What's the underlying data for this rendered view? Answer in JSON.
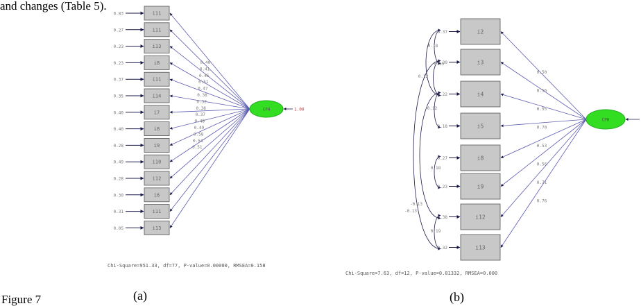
{
  "header_text": "and changes (Table 5).",
  "figure_label": "Figure 7",
  "panel_a": {
    "label": "(a)",
    "latent_name": "CPH",
    "latent_variance": "1.00",
    "fit_text": "Chi-Square=951.33, df=77, P-value=0.00000, RMSEA=0.158",
    "indicators": [
      {
        "name": "i11",
        "error": "0.83",
        "loading": "0.40"
      },
      {
        "name": "i11",
        "error": "0.27",
        "loading": "0.41"
      },
      {
        "name": "i13",
        "error": "0.23",
        "loading": "0.45"
      },
      {
        "name": "i8",
        "error": "0.23",
        "loading": "0.51"
      },
      {
        "name": "i11",
        "error": "0.37",
        "loading": "0.47"
      },
      {
        "name": "i14",
        "error": "0.35",
        "loading": "0.38"
      },
      {
        "name": "i7",
        "error": "0.40",
        "loading": "0.32"
      },
      {
        "name": "i8",
        "error": "0.40",
        "loading": "0.38"
      },
      {
        "name": "i9",
        "error": "0.28",
        "loading": "0.37"
      },
      {
        "name": "i10",
        "error": "0.49",
        "loading": "0.48"
      },
      {
        "name": "i12",
        "error": "0.28",
        "loading": "0.49"
      },
      {
        "name": "i6",
        "error": "0.30",
        "loading": "0.58"
      },
      {
        "name": "i11",
        "error": "0.31",
        "loading": "0.54"
      },
      {
        "name": "i13",
        "error": "0.05",
        "loading": "0.51"
      }
    ]
  },
  "panel_b": {
    "label": "(b)",
    "latent_name": "CPH",
    "fit_text": "Chi-Square=7.63, df=12, P-value=0.81332, RMSEA=0.000",
    "indicators": [
      {
        "name": "i2",
        "error": "0.37",
        "loading": "0.50"
      },
      {
        "name": "i3",
        "error": "0.30",
        "loading": "0.56"
      },
      {
        "name": "i4",
        "error": "0.22",
        "loading": "0.55"
      },
      {
        "name": "i5",
        "error": "0.18",
        "loading": "0.70"
      },
      {
        "name": "i8",
        "error": "0.27",
        "loading": "0.53"
      },
      {
        "name": "i9",
        "error": "0.23",
        "loading": "0.56"
      },
      {
        "name": "i12",
        "error": "0.38",
        "loading": "0.71"
      },
      {
        "name": "i13",
        "error": "0.32",
        "loading": "0.76"
      }
    ],
    "covariances": [
      "0.18",
      "0.12",
      "0.15",
      "0.12",
      "0.18",
      "-0.13",
      "-0.13",
      "0.19"
    ]
  }
}
